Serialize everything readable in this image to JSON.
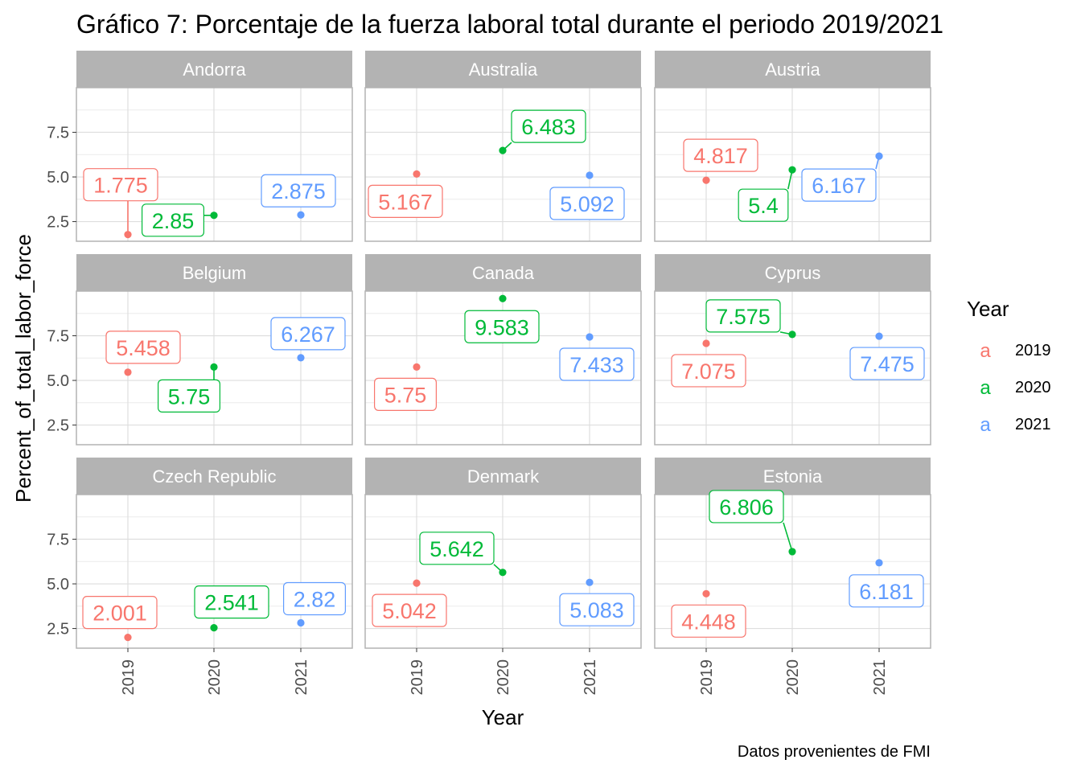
{
  "chart_data": {
    "type": "scatter",
    "title": "Gráfico 7: Porcentaje de la fuerza laboral total durante el periodo 2019/2021",
    "xlabel": "Year",
    "ylabel": "Percent_of_total_labor_force",
    "caption": "Datos provenientes de FMI",
    "x_categories": [
      "2019",
      "2020",
      "2021"
    ],
    "y_ticks": [
      "2.5",
      "5.0",
      "7.5"
    ],
    "ylim": [
      1.4,
      10.0
    ],
    "facet_layout": "3x3",
    "grid": true,
    "legend": {
      "title": "Year",
      "position": "right",
      "key_glyph": "a",
      "entries": [
        {
          "label": "2019",
          "color": "#F8766D"
        },
        {
          "label": "2020",
          "color": "#00BA38"
        },
        {
          "label": "2021",
          "color": "#619CFF"
        }
      ]
    },
    "colors": {
      "2019": "#F8766D",
      "2020": "#00BA38",
      "2021": "#619CFF"
    },
    "panels": [
      {
        "country": "Andorra",
        "values": [
          1.775,
          2.85,
          2.875
        ],
        "labels": [
          "1.775",
          "2.85",
          "2.875"
        ]
      },
      {
        "country": "Australia",
        "values": [
          5.167,
          6.483,
          5.092
        ],
        "labels": [
          "5.167",
          "6.483",
          "5.092"
        ]
      },
      {
        "country": "Austria",
        "values": [
          4.817,
          5.4,
          6.167
        ],
        "labels": [
          "4.817",
          "5.4",
          "6.167"
        ]
      },
      {
        "country": "Belgium",
        "values": [
          5.458,
          5.75,
          6.267
        ],
        "labels": [
          "5.458",
          "5.75",
          "6.267"
        ]
      },
      {
        "country": "Canada",
        "values": [
          5.75,
          9.583,
          7.433
        ],
        "labels": [
          "5.75",
          "9.583",
          "7.433"
        ]
      },
      {
        "country": "Cyprus",
        "values": [
          7.075,
          7.575,
          7.475
        ],
        "labels": [
          "7.075",
          "7.575",
          "7.475"
        ]
      },
      {
        "country": "Czech Republic",
        "values": [
          2.001,
          2.541,
          2.82
        ],
        "labels": [
          "2.001",
          "2.541",
          "2.82"
        ]
      },
      {
        "country": "Denmark",
        "values": [
          5.042,
          5.642,
          5.083
        ],
        "labels": [
          "5.042",
          "5.642",
          "5.083"
        ]
      },
      {
        "country": "Estonia",
        "values": [
          4.448,
          6.806,
          6.181
        ],
        "labels": [
          "4.448",
          "6.806",
          "6.181"
        ]
      }
    ]
  }
}
